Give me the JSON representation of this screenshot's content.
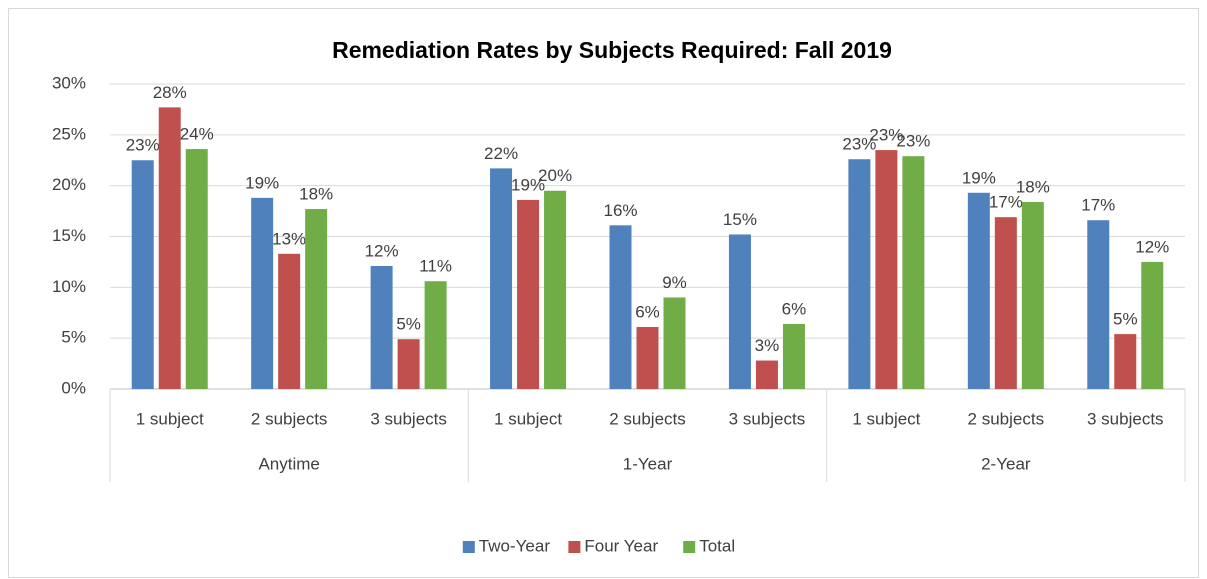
{
  "chart_data": {
    "type": "bar",
    "title": "Remediation Rates by Subjects Required: Fall 2019",
    "categories": [
      "1 subject",
      "2 subjects",
      "3 subjects",
      "1 subject",
      "2 subjects",
      "3 subjects",
      "1 subject",
      "2 subjects",
      "3 subjects"
    ],
    "category_groups": [
      "Anytime",
      "1-Year",
      "2-Year"
    ],
    "series": [
      {
        "name": "Two-Year",
        "color": "#4f81bd",
        "values": [
          22.5,
          18.8,
          12.1,
          21.7,
          16.1,
          15.2,
          22.6,
          19.3,
          16.6
        ],
        "value_labels": [
          "23%",
          "19%",
          "12%",
          "22%",
          "16%",
          "15%",
          "23%",
          "19%",
          "17%"
        ]
      },
      {
        "name": "Four Year",
        "color": "#c0504d",
        "values": [
          27.7,
          13.3,
          4.9,
          18.6,
          6.1,
          2.8,
          23.5,
          16.9,
          5.4
        ],
        "value_labels": [
          "28%",
          "13%",
          "5%",
          "19%",
          "6%",
          "3%",
          "23%",
          "17%",
          "5%"
        ]
      },
      {
        "name": "Total",
        "color": "#70ad47",
        "values": [
          23.6,
          17.7,
          10.6,
          19.5,
          9.0,
          6.4,
          22.9,
          18.4,
          12.5
        ],
        "value_labels": [
          "24%",
          "18%",
          "11%",
          "20%",
          "9%",
          "6%",
          "23%",
          "18%",
          "12%"
        ]
      }
    ],
    "ylim": [
      0,
      30
    ],
    "yticks": [
      {
        "value": 0,
        "label": "0%"
      },
      {
        "value": 5,
        "label": "5%"
      },
      {
        "value": 10,
        "label": "10%"
      },
      {
        "value": 15,
        "label": "15%"
      },
      {
        "value": 20,
        "label": "20%"
      },
      {
        "value": 25,
        "label": "25%"
      },
      {
        "value": 30,
        "label": "30%"
      }
    ],
    "grid": true,
    "legend": "bottom"
  }
}
